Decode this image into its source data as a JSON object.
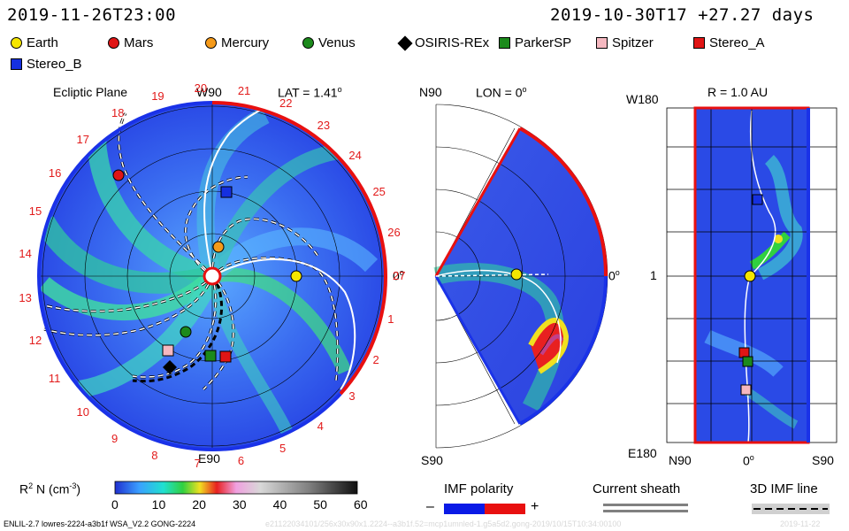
{
  "header": {
    "model_time": "2019-11-26T23:00",
    "base_time": "2019-10-30T17 +27.27 days"
  },
  "legend": [
    {
      "name": "Earth",
      "shape": "circle",
      "color": "#f5e600"
    },
    {
      "name": "Mars",
      "shape": "circle",
      "color": "#e01515"
    },
    {
      "name": "Mercury",
      "shape": "circle",
      "color": "#f59a1a"
    },
    {
      "name": "Venus",
      "shape": "circle",
      "color": "#1c8a1c"
    },
    {
      "name": "OSIRIS-REx",
      "shape": "diamond",
      "color": "#000000"
    },
    {
      "name": "ParkerSP",
      "shape": "square",
      "color": "#1c8a1c"
    },
    {
      "name": "Spitzer",
      "shape": "square",
      "color": "#f5b8c0"
    },
    {
      "name": "Stereo_A",
      "shape": "square",
      "color": "#e01515"
    },
    {
      "name": "Stereo_B",
      "shape": "square",
      "color": "#1530e0"
    }
  ],
  "panel1": {
    "title": "Ecliptic Plane",
    "top_label": "W90",
    "bottom_label": "E90",
    "lat_label": "LAT = 1.41",
    "degree_symbol": "o",
    "right_label": "0",
    "carrington": [
      "19",
      "20",
      "21",
      "22",
      "23",
      "24",
      "25",
      "26",
      "27",
      "1",
      "2",
      "3",
      "4",
      "5",
      "6",
      "7",
      "8",
      "9",
      "10",
      "11",
      "12",
      "13",
      "14",
      "15",
      "16",
      "17",
      "18"
    ]
  },
  "panel2": {
    "top_label": "N90",
    "bottom_label": "S90",
    "lon_label": "LON = 0",
    "right_label": "0"
  },
  "panel3": {
    "r_label": "R = 1.0 AU",
    "top_label": "W180",
    "bottom_label": "E180",
    "mid_label": "1",
    "x_labels": [
      "N90",
      "0",
      "S90"
    ]
  },
  "colorbar": {
    "label": "R",
    "label_sup": "2",
    "label_rest": "N (cm",
    "label_exp": "-3",
    "label_close": ")",
    "ticks": [
      "0",
      "10",
      "20",
      "30",
      "40",
      "50",
      "60"
    ]
  },
  "imf": {
    "polarity_label": "IMF polarity",
    "minus": "–",
    "plus": "+",
    "minus_color": "#0a1ae6",
    "plus_color": "#e81010"
  },
  "current_sheath": {
    "label": "Current sheath"
  },
  "imf_line": {
    "label": "3D IMF line"
  },
  "footer": {
    "left": "ENLIL-2.7 lowres-2224-a3b1f WSA_V2.2 GONG-2224",
    "middle": "e21122034101/256x30x90x1.2224--a3b1f.52=mcp1umnled-1.g5a5d2.gong-2019/10/15T10:34:00100",
    "right": "2019-11-22"
  },
  "colors": {
    "red": "#e21b1b",
    "blue": "#1a32e8"
  }
}
